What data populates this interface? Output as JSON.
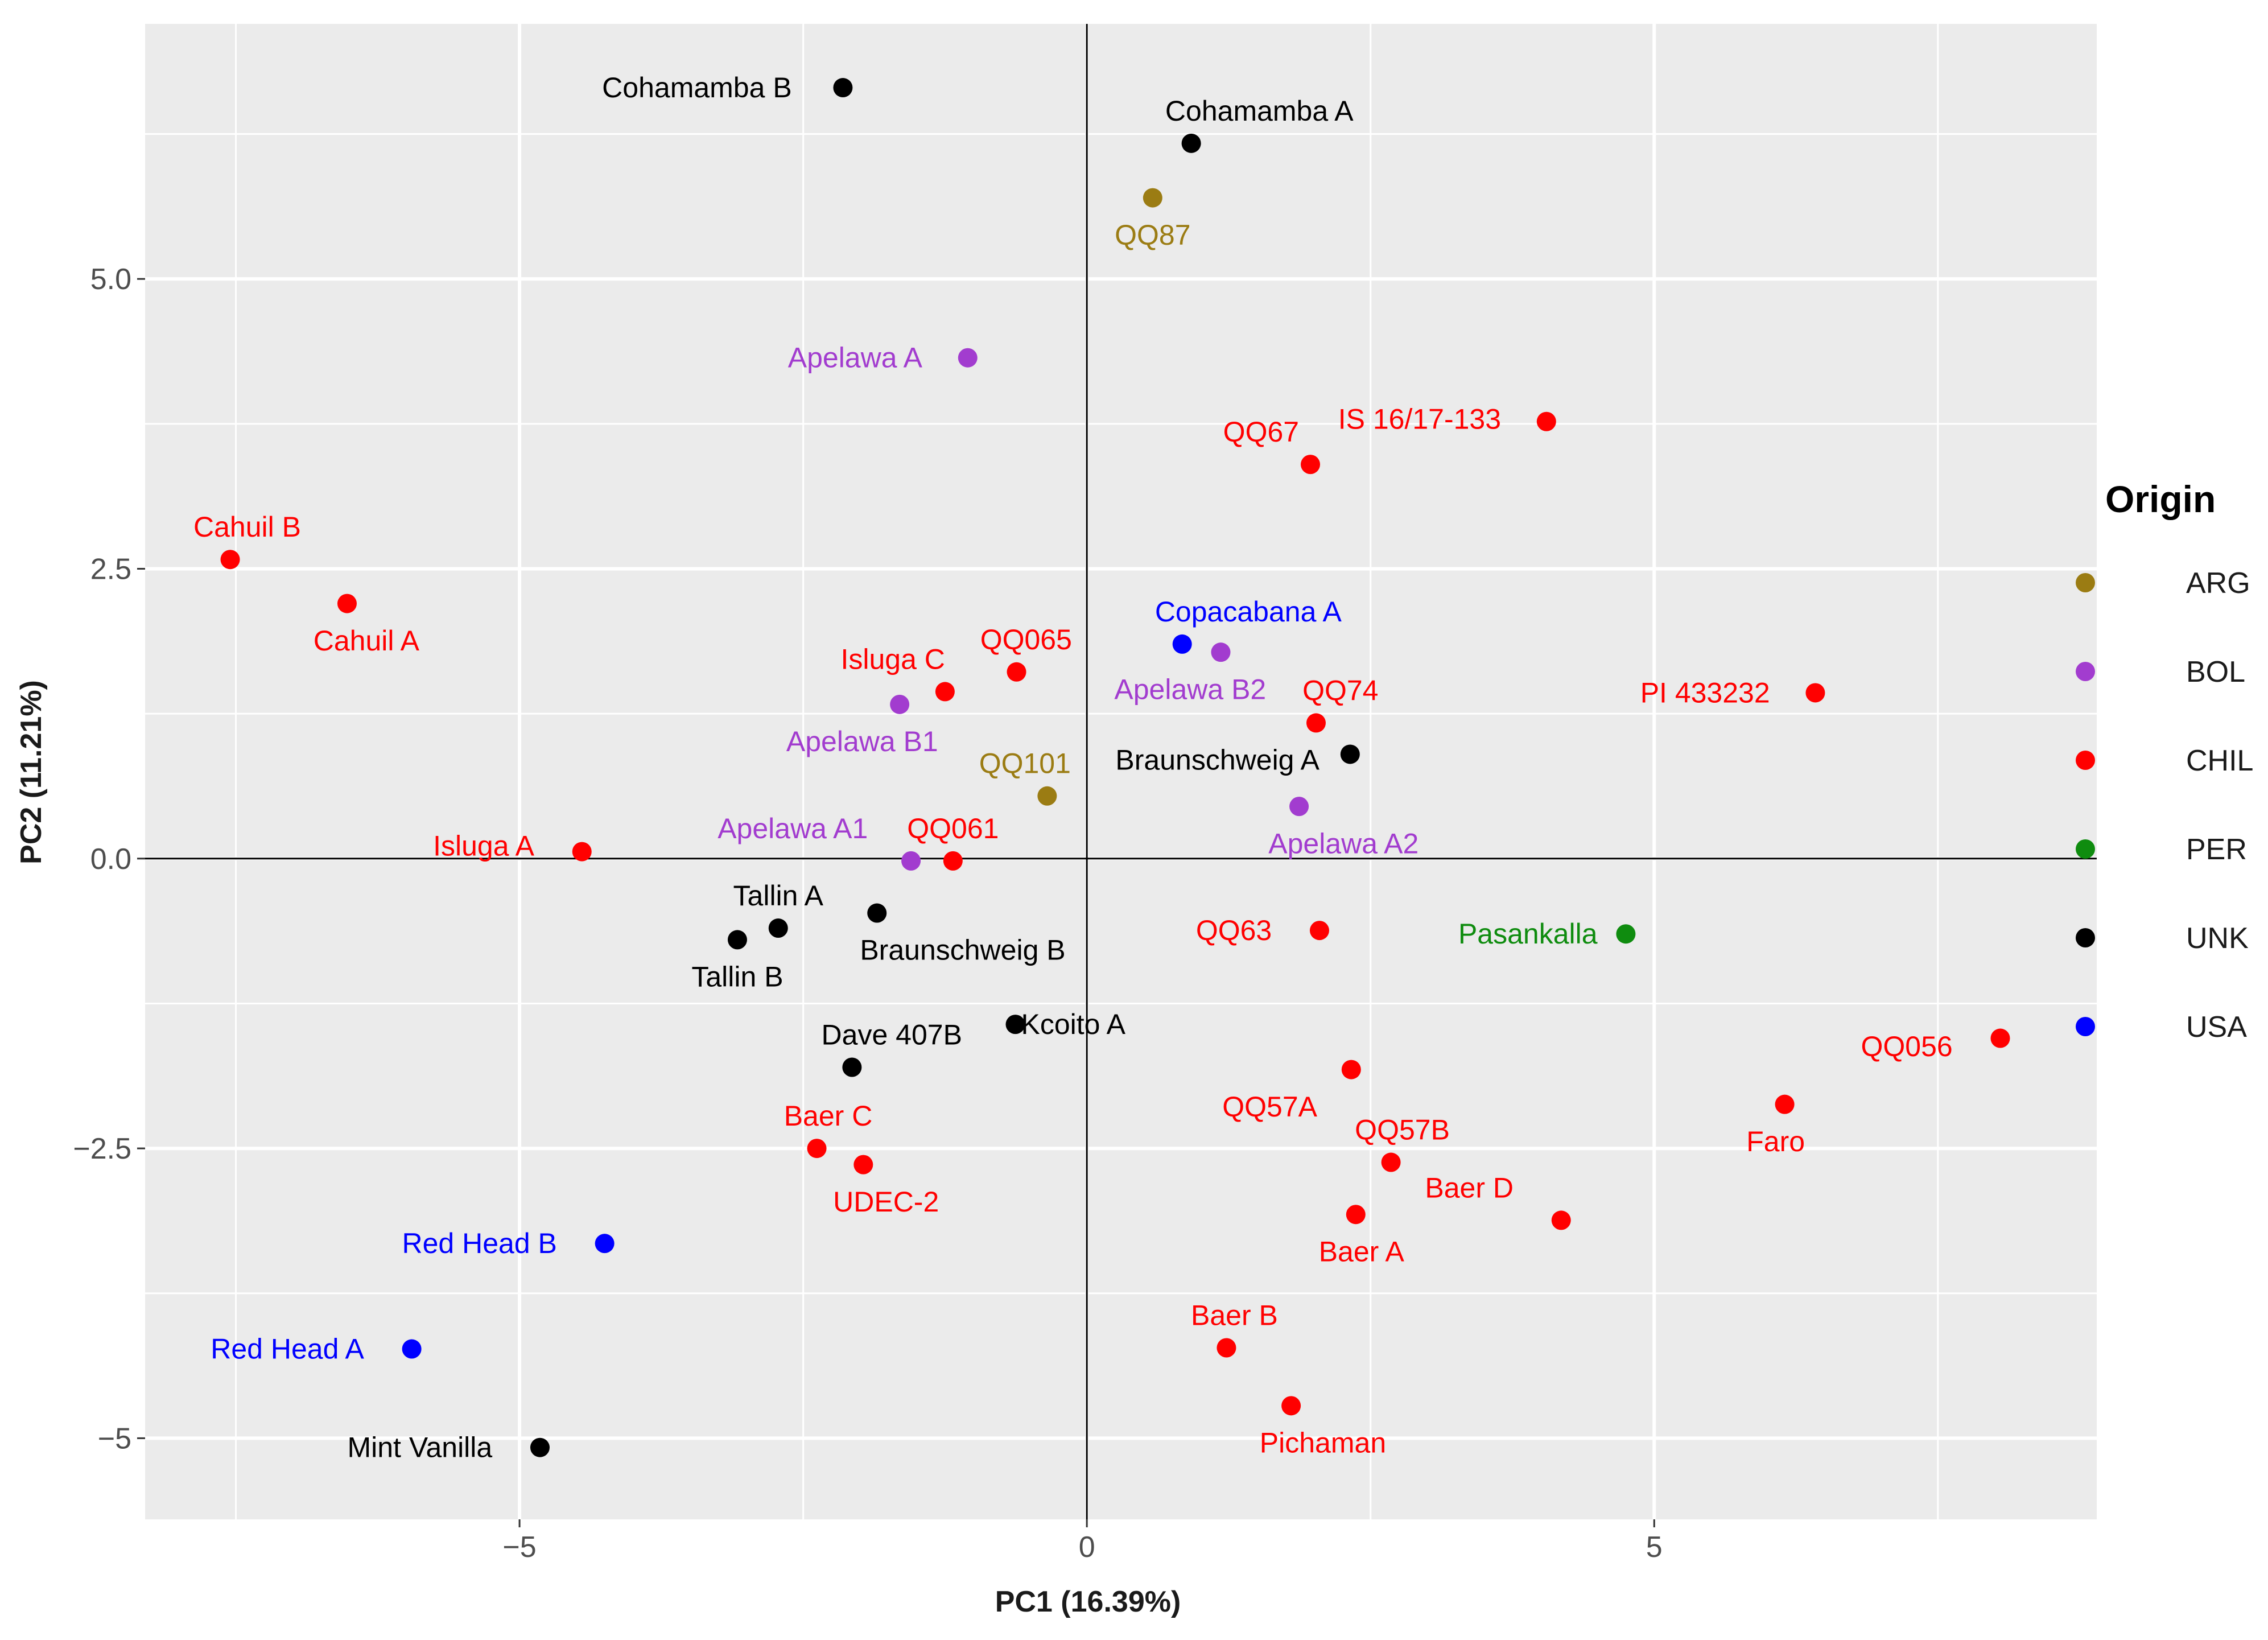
{
  "chart_data": {
    "type": "scatter",
    "xlabel": "PC1 (16.39%)",
    "ylabel": "PC2 (11.21%)",
    "xlim": [
      -8.3,
      8.9
    ],
    "ylim": [
      -5.7,
      7.2
    ],
    "x_ticks": [
      {
        "value": -5,
        "label": "−5"
      },
      {
        "value": 0,
        "label": "0"
      },
      {
        "value": 5,
        "label": "5"
      }
    ],
    "y_ticks": [
      {
        "value": 5,
        "label": "5.0"
      },
      {
        "value": 2.5,
        "label": "2.5"
      },
      {
        "value": 0,
        "label": "0.0"
      },
      {
        "value": -2.5,
        "label": "−2.5"
      },
      {
        "value": -5,
        "label": "−5"
      }
    ],
    "grid": true,
    "reference_lines": {
      "x": 0,
      "y": 0
    },
    "legend": {
      "title": "Origin",
      "position": "right",
      "entries": [
        {
          "label": "ARG",
          "color": "#9b7c13"
        },
        {
          "label": "BOL",
          "color": "#a23ccf"
        },
        {
          "label": "CHIL",
          "color": "#ff0000"
        },
        {
          "label": "PER",
          "color": "#0f8c0f"
        },
        {
          "label": "UNK",
          "color": "#000000"
        },
        {
          "label": "USA",
          "color": "#0000ff"
        }
      ]
    },
    "points": [
      {
        "label": "Cohamamba B",
        "origin": "UNK",
        "x": -2.15,
        "y": 6.65,
        "anchor": "end",
        "dx": -0.45,
        "dy": 0.0
      },
      {
        "label": "Cohamamba A",
        "origin": "UNK",
        "x": 0.92,
        "y": 6.17,
        "anchor": "middle",
        "dx": 0.6,
        "dy": 0.28
      },
      {
        "label": "QQ87",
        "origin": "ARG",
        "x": 0.58,
        "y": 5.7,
        "anchor": "middle",
        "dx": 0.0,
        "dy": -0.32
      },
      {
        "label": "Apelawa A",
        "origin": "BOL",
        "x": -1.05,
        "y": 4.32,
        "anchor": "end",
        "dx": -0.4,
        "dy": 0.0
      },
      {
        "label": "IS 16/17-133",
        "origin": "CHIL",
        "x": 4.05,
        "y": 3.77,
        "anchor": "end",
        "dx": -0.4,
        "dy": 0.02
      },
      {
        "label": "QQ67",
        "origin": "CHIL",
        "x": 1.97,
        "y": 3.4,
        "anchor": "end",
        "dx": -0.1,
        "dy": 0.28
      },
      {
        "label": "Cahuil B",
        "origin": "CHIL",
        "x": -7.55,
        "y": 2.58,
        "anchor": "middle",
        "dx": 0.15,
        "dy": 0.28
      },
      {
        "label": "Cahuil A",
        "origin": "CHIL",
        "x": -6.52,
        "y": 2.2,
        "anchor": "middle",
        "dx": 0.17,
        "dy": -0.32
      },
      {
        "label": "Copacabana A",
        "origin": "USA",
        "x": 0.84,
        "y": 1.85,
        "anchor": "start",
        "dx": -0.24,
        "dy": 0.28
      },
      {
        "label": "Apelawa B2",
        "origin": "BOL",
        "x": 1.18,
        "y": 1.78,
        "anchor": "end",
        "dx": 0.4,
        "dy": -0.32
      },
      {
        "label": "QQ065",
        "origin": "CHIL",
        "x": -0.62,
        "y": 1.61,
        "anchor": "start",
        "dx": -0.32,
        "dy": 0.28
      },
      {
        "label": "Isluga C",
        "origin": "CHIL",
        "x": -1.25,
        "y": 1.44,
        "anchor": "end",
        "dx": 0.0,
        "dy": 0.28
      },
      {
        "label": "Apelawa B1",
        "origin": "BOL",
        "x": -1.65,
        "y": 1.33,
        "anchor": "middle",
        "dx": -0.33,
        "dy": -0.32
      },
      {
        "label": "QQ74",
        "origin": "CHIL",
        "x": 2.02,
        "y": 1.17,
        "anchor": "start",
        "dx": -0.12,
        "dy": 0.28
      },
      {
        "label": "PI 433232",
        "origin": "CHIL",
        "x": 6.42,
        "y": 1.43,
        "anchor": "end",
        "dx": -0.4,
        "dy": 0.0
      },
      {
        "label": "Braunschweig A",
        "origin": "UNK",
        "x": 2.32,
        "y": 0.9,
        "anchor": "end",
        "dx": -0.27,
        "dy": -0.05
      },
      {
        "label": "QQ101",
        "origin": "ARG",
        "x": -0.35,
        "y": 0.54,
        "anchor": "start",
        "dx": -0.6,
        "dy": 0.28
      },
      {
        "label": "Apelawa A2",
        "origin": "BOL",
        "x": 1.87,
        "y": 0.45,
        "anchor": "start",
        "dx": -0.27,
        "dy": -0.32
      },
      {
        "label": "Isluga A",
        "origin": "CHIL",
        "x": -4.45,
        "y": 0.06,
        "anchor": "end",
        "dx": -0.42,
        "dy": 0.05
      },
      {
        "label": "Apelawa A1",
        "origin": "BOL",
        "x": -1.55,
        "y": -0.02,
        "anchor": "end",
        "dx": -0.38,
        "dy": 0.28
      },
      {
        "label": "QQ061",
        "origin": "CHIL",
        "x": -1.18,
        "y": -0.02,
        "anchor": "middle",
        "dx": 0.0,
        "dy": 0.28
      },
      {
        "label": "Tallin A",
        "origin": "UNK",
        "x": -2.72,
        "y": -0.6,
        "anchor": "middle",
        "dx": 0.0,
        "dy": 0.28
      },
      {
        "label": "Tallin B",
        "origin": "UNK",
        "x": -3.08,
        "y": -0.7,
        "anchor": "middle",
        "dx": 0.0,
        "dy": -0.32
      },
      {
        "label": "Braunschweig B",
        "origin": "UNK",
        "x": -1.85,
        "y": -0.47,
        "anchor": "start",
        "dx": -0.15,
        "dy": -0.32
      },
      {
        "label": "QQ63",
        "origin": "CHIL",
        "x": 2.05,
        "y": -0.62,
        "anchor": "end",
        "dx": -0.42,
        "dy": 0.0
      },
      {
        "label": "Pasankalla",
        "origin": "PER",
        "x": 4.75,
        "y": -0.65,
        "anchor": "end",
        "dx": -0.25,
        "dy": 0.0
      },
      {
        "label": "Kcoito A",
        "origin": "UNK",
        "x": -0.63,
        "y": -1.43,
        "anchor": "start",
        "dx": 0.05,
        "dy": 0.0
      },
      {
        "label": "Dave 407B",
        "origin": "UNK",
        "x": -2.07,
        "y": -1.8,
        "anchor": "start",
        "dx": -0.27,
        "dy": 0.28
      },
      {
        "label": "QQ056",
        "origin": "CHIL",
        "x": 8.05,
        "y": -1.55,
        "anchor": "end",
        "dx": -0.42,
        "dy": -0.07
      },
      {
        "label": "QQ57A",
        "origin": "CHIL",
        "x": 2.33,
        "y": -1.82,
        "anchor": "end",
        "dx": -0.3,
        "dy": -0.32
      },
      {
        "label": "Faro",
        "origin": "CHIL",
        "x": 6.15,
        "y": -2.12,
        "anchor": "middle",
        "dx": -0.08,
        "dy": -0.32
      },
      {
        "label": "Baer C",
        "origin": "CHIL",
        "x": -2.38,
        "y": -2.5,
        "anchor": "middle",
        "dx": 0.1,
        "dy": 0.28
      },
      {
        "label": "UDEC-2",
        "origin": "CHIL",
        "x": -1.97,
        "y": -2.64,
        "anchor": "middle",
        "dx": 0.2,
        "dy": -0.32
      },
      {
        "label": "QQ57B",
        "origin": "CHIL",
        "x": 2.68,
        "y": -2.62,
        "anchor": "middle",
        "dx": 0.1,
        "dy": 0.28
      },
      {
        "label": "Baer D",
        "origin": "CHIL",
        "x": 4.18,
        "y": -3.12,
        "anchor": "end",
        "dx": -0.42,
        "dy": 0.28
      },
      {
        "label": "Baer A",
        "origin": "CHIL",
        "x": 2.37,
        "y": -3.07,
        "anchor": "middle",
        "dx": 0.05,
        "dy": -0.32
      },
      {
        "label": "Red Head B",
        "origin": "USA",
        "x": -4.25,
        "y": -3.32,
        "anchor": "end",
        "dx": -0.42,
        "dy": 0.0
      },
      {
        "label": "Baer B",
        "origin": "CHIL",
        "x": 1.23,
        "y": -4.22,
        "anchor": "middle",
        "dx": 0.07,
        "dy": 0.28
      },
      {
        "label": "Red Head A",
        "origin": "USA",
        "x": -5.95,
        "y": -4.23,
        "anchor": "end",
        "dx": -0.42,
        "dy": 0.0
      },
      {
        "label": "Pichaman",
        "origin": "CHIL",
        "x": 1.8,
        "y": -4.72,
        "anchor": "middle",
        "dx": 0.28,
        "dy": -0.32
      },
      {
        "label": "Mint Vanilla",
        "origin": "UNK",
        "x": -4.82,
        "y": -5.08,
        "anchor": "end",
        "dx": -0.42,
        "dy": 0.0
      }
    ]
  }
}
